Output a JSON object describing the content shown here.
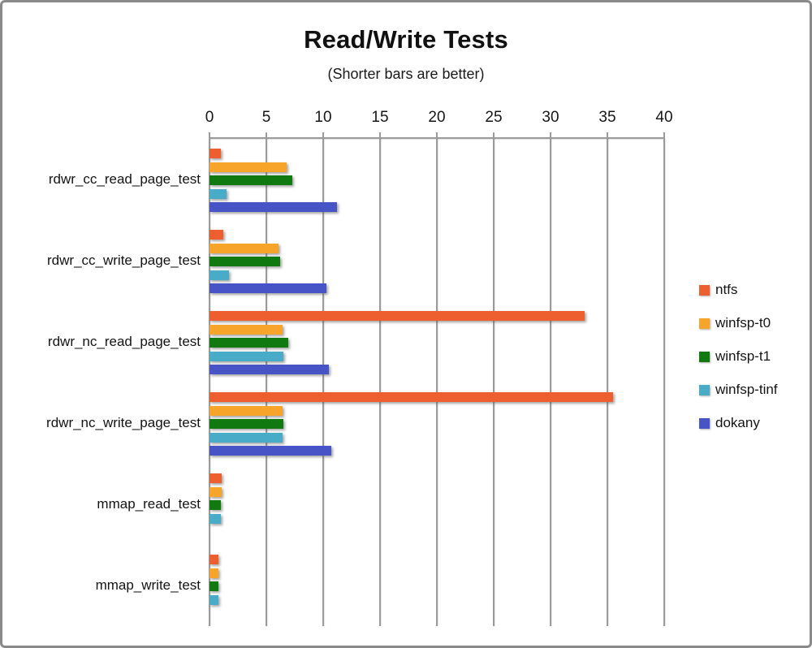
{
  "title": "Read/Write Tests",
  "subtitle": "(Shorter bars are better)",
  "chart_data": {
    "type": "bar",
    "orientation": "horizontal",
    "title": "Read/Write Tests",
    "subtitle": "(Shorter bars are better)",
    "categories": [
      "rdwr_cc_read_page_test",
      "rdwr_cc_write_page_test",
      "rdwr_nc_read_page_test",
      "rdwr_nc_write_page_test",
      "mmap_read_test",
      "mmap_write_test"
    ],
    "series": [
      {
        "name": "ntfs",
        "color": "#EE5F2F",
        "values": [
          1.0,
          1.2,
          33.0,
          35.5,
          1.1,
          0.8
        ]
      },
      {
        "name": "winfsp-t0",
        "color": "#F6A42A",
        "values": [
          6.8,
          6.1,
          6.4,
          6.4,
          1.1,
          0.8
        ]
      },
      {
        "name": "winfsp-t1",
        "color": "#107A10",
        "values": [
          7.3,
          6.2,
          6.9,
          6.5,
          1.0,
          0.8
        ]
      },
      {
        "name": "winfsp-tinf",
        "color": "#48ABC8",
        "values": [
          1.5,
          1.7,
          6.5,
          6.4,
          1.0,
          0.8
        ]
      },
      {
        "name": "dokany",
        "color": "#4654C6",
        "values": [
          11.2,
          10.3,
          10.5,
          10.7,
          null,
          null
        ]
      }
    ],
    "x_axis": {
      "min": 0,
      "max": 40,
      "step": 5,
      "ticks": [
        "0",
        "5",
        "10",
        "15",
        "20",
        "25",
        "30",
        "35",
        "40"
      ],
      "position": "top"
    },
    "grid": true,
    "legend_position": "right",
    "colors": {
      "gridline": "#9b9b9b",
      "frame_border": "#8a8a8a",
      "text": "#141414"
    }
  }
}
